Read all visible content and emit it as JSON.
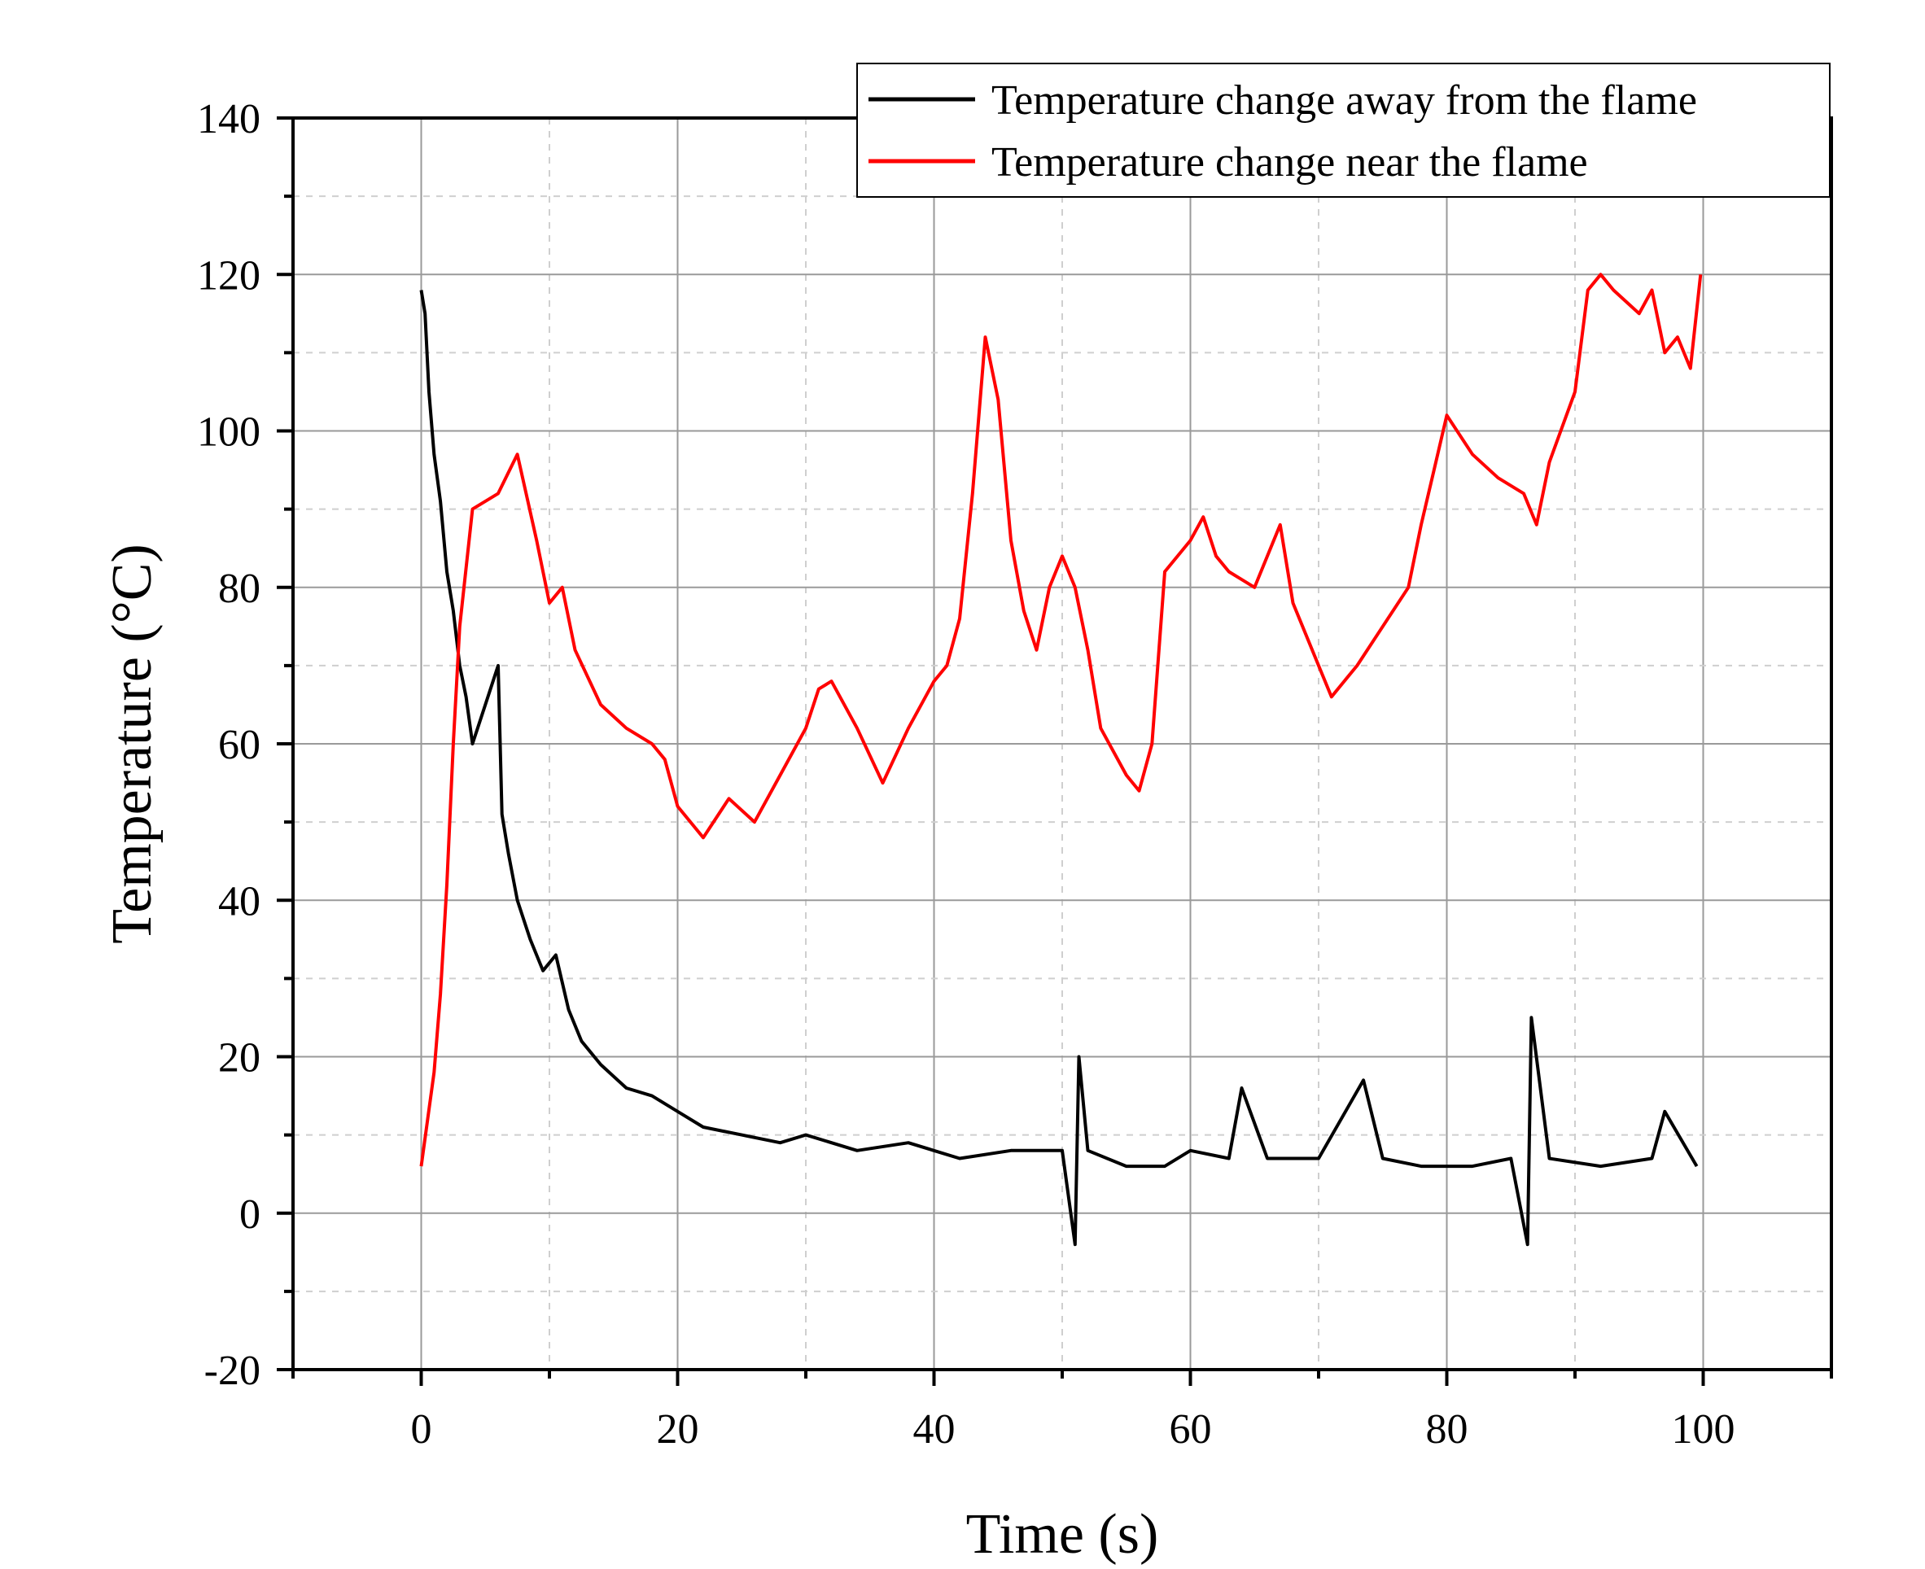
{
  "chart_data": {
    "type": "line",
    "xlabel": "Time (s)",
    "ylabel": "Temperature (°C)",
    "xlim": [
      -10,
      110
    ],
    "ylim": [
      -20,
      140
    ],
    "xticks": [
      0,
      20,
      40,
      60,
      80,
      100
    ],
    "yticks": [
      -20,
      0,
      20,
      40,
      60,
      80,
      100,
      120,
      140
    ],
    "grid": true,
    "legend_position": "top-right",
    "series": [
      {
        "name": "Temperature change away from the flame",
        "color": "#000000",
        "x": [
          0,
          0.3,
          0.6,
          1,
          1.5,
          2,
          2.5,
          3,
          3.5,
          4,
          5,
          6,
          6.3,
          6.8,
          7.5,
          8.5,
          9.5,
          10.5,
          11.5,
          12.5,
          14,
          16,
          18,
          20,
          22,
          25,
          28,
          30,
          34,
          38,
          42,
          46,
          50,
          51,
          51.3,
          52,
          55,
          58,
          60,
          63,
          64,
          66,
          70,
          73.5,
          75,
          78,
          82,
          85,
          86.3,
          86.6,
          88,
          92,
          96,
          97,
          99.5
        ],
        "y": [
          118,
          115,
          105,
          97,
          91,
          82,
          77,
          70,
          66,
          60,
          65,
          70,
          51,
          46,
          40,
          35,
          31,
          33,
          26,
          22,
          19,
          16,
          15,
          13,
          11,
          10,
          9,
          10,
          8,
          9,
          7,
          8,
          8,
          -4,
          20,
          8,
          6,
          6,
          8,
          7,
          16,
          7,
          7,
          17,
          7,
          6,
          6,
          7,
          -4,
          25,
          7,
          6,
          7,
          13,
          6
        ]
      },
      {
        "name": "Temperature change near the flame",
        "color": "#ff0000",
        "x": [
          0,
          0.5,
          1,
          1.5,
          2,
          2.5,
          3,
          4,
          6,
          7.5,
          9,
          10,
          11,
          12,
          14,
          16,
          18,
          19,
          20,
          22,
          24,
          26,
          28,
          30,
          31,
          32,
          34,
          36,
          38,
          40,
          41,
          42,
          43,
          44,
          45,
          46,
          47,
          48,
          49,
          50,
          51,
          52,
          53,
          55,
          56,
          57,
          58,
          60,
          61,
          62,
          63,
          65,
          67,
          68,
          70,
          71,
          72,
          73,
          75,
          77,
          78,
          79,
          80,
          82,
          84,
          86,
          87,
          88,
          90,
          91,
          92,
          93,
          95,
          96,
          97,
          98,
          99,
          99.8
        ],
        "y": [
          6,
          12,
          18,
          28,
          42,
          60,
          75,
          90,
          92,
          97,
          86,
          78,
          80,
          72,
          65,
          62,
          60,
          58,
          52,
          48,
          53,
          50,
          56,
          62,
          67,
          68,
          62,
          55,
          62,
          68,
          70,
          76,
          92,
          112,
          104,
          86,
          77,
          72,
          80,
          84,
          80,
          72,
          62,
          56,
          54,
          60,
          82,
          86,
          89,
          84,
          82,
          80,
          88,
          78,
          70,
          66,
          68,
          70,
          75,
          80,
          88,
          95,
          102,
          97,
          94,
          92,
          88,
          96,
          105,
          118,
          120,
          118,
          115,
          118,
          110,
          112,
          108,
          120
        ]
      }
    ]
  }
}
